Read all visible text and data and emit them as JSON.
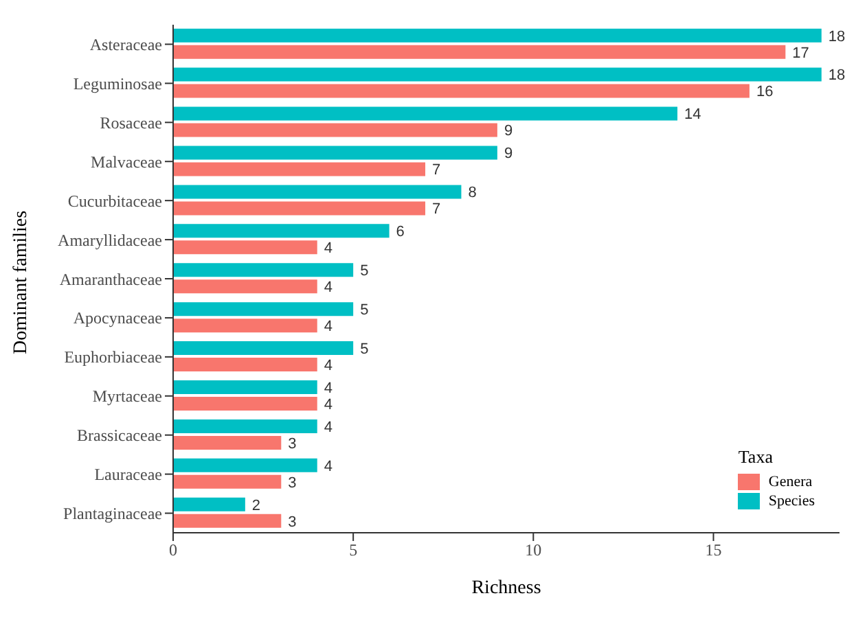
{
  "chart_data": {
    "type": "bar",
    "orientation": "horizontal",
    "xlabel": "Richness",
    "ylabel": "Dominant families",
    "legend_title": "Taxa",
    "categories": [
      "Asteraceae",
      "Leguminosae",
      "Rosaceae",
      "Malvaceae",
      "Cucurbitaceae",
      "Amaryllidaceae",
      "Amaranthaceae",
      "Apocynaceae",
      "Euphorbiaceae",
      "Myrtaceae",
      "Brassicaceae",
      "Lauraceae",
      "Plantaginaceae"
    ],
    "series": [
      {
        "name": "Genera",
        "color": "#f8766d",
        "values": [
          17,
          16,
          9,
          7,
          7,
          4,
          4,
          4,
          4,
          4,
          3,
          3,
          3
        ]
      },
      {
        "name": "Species",
        "color": "#00bfc4",
        "values": [
          18,
          18,
          14,
          9,
          8,
          6,
          5,
          5,
          5,
          4,
          4,
          4,
          2
        ]
      }
    ],
    "xlim": [
      0,
      18.5
    ],
    "xticks": [
      0,
      5,
      10,
      15
    ],
    "data_labels": true,
    "grid": false,
    "legend": "bottom right"
  }
}
